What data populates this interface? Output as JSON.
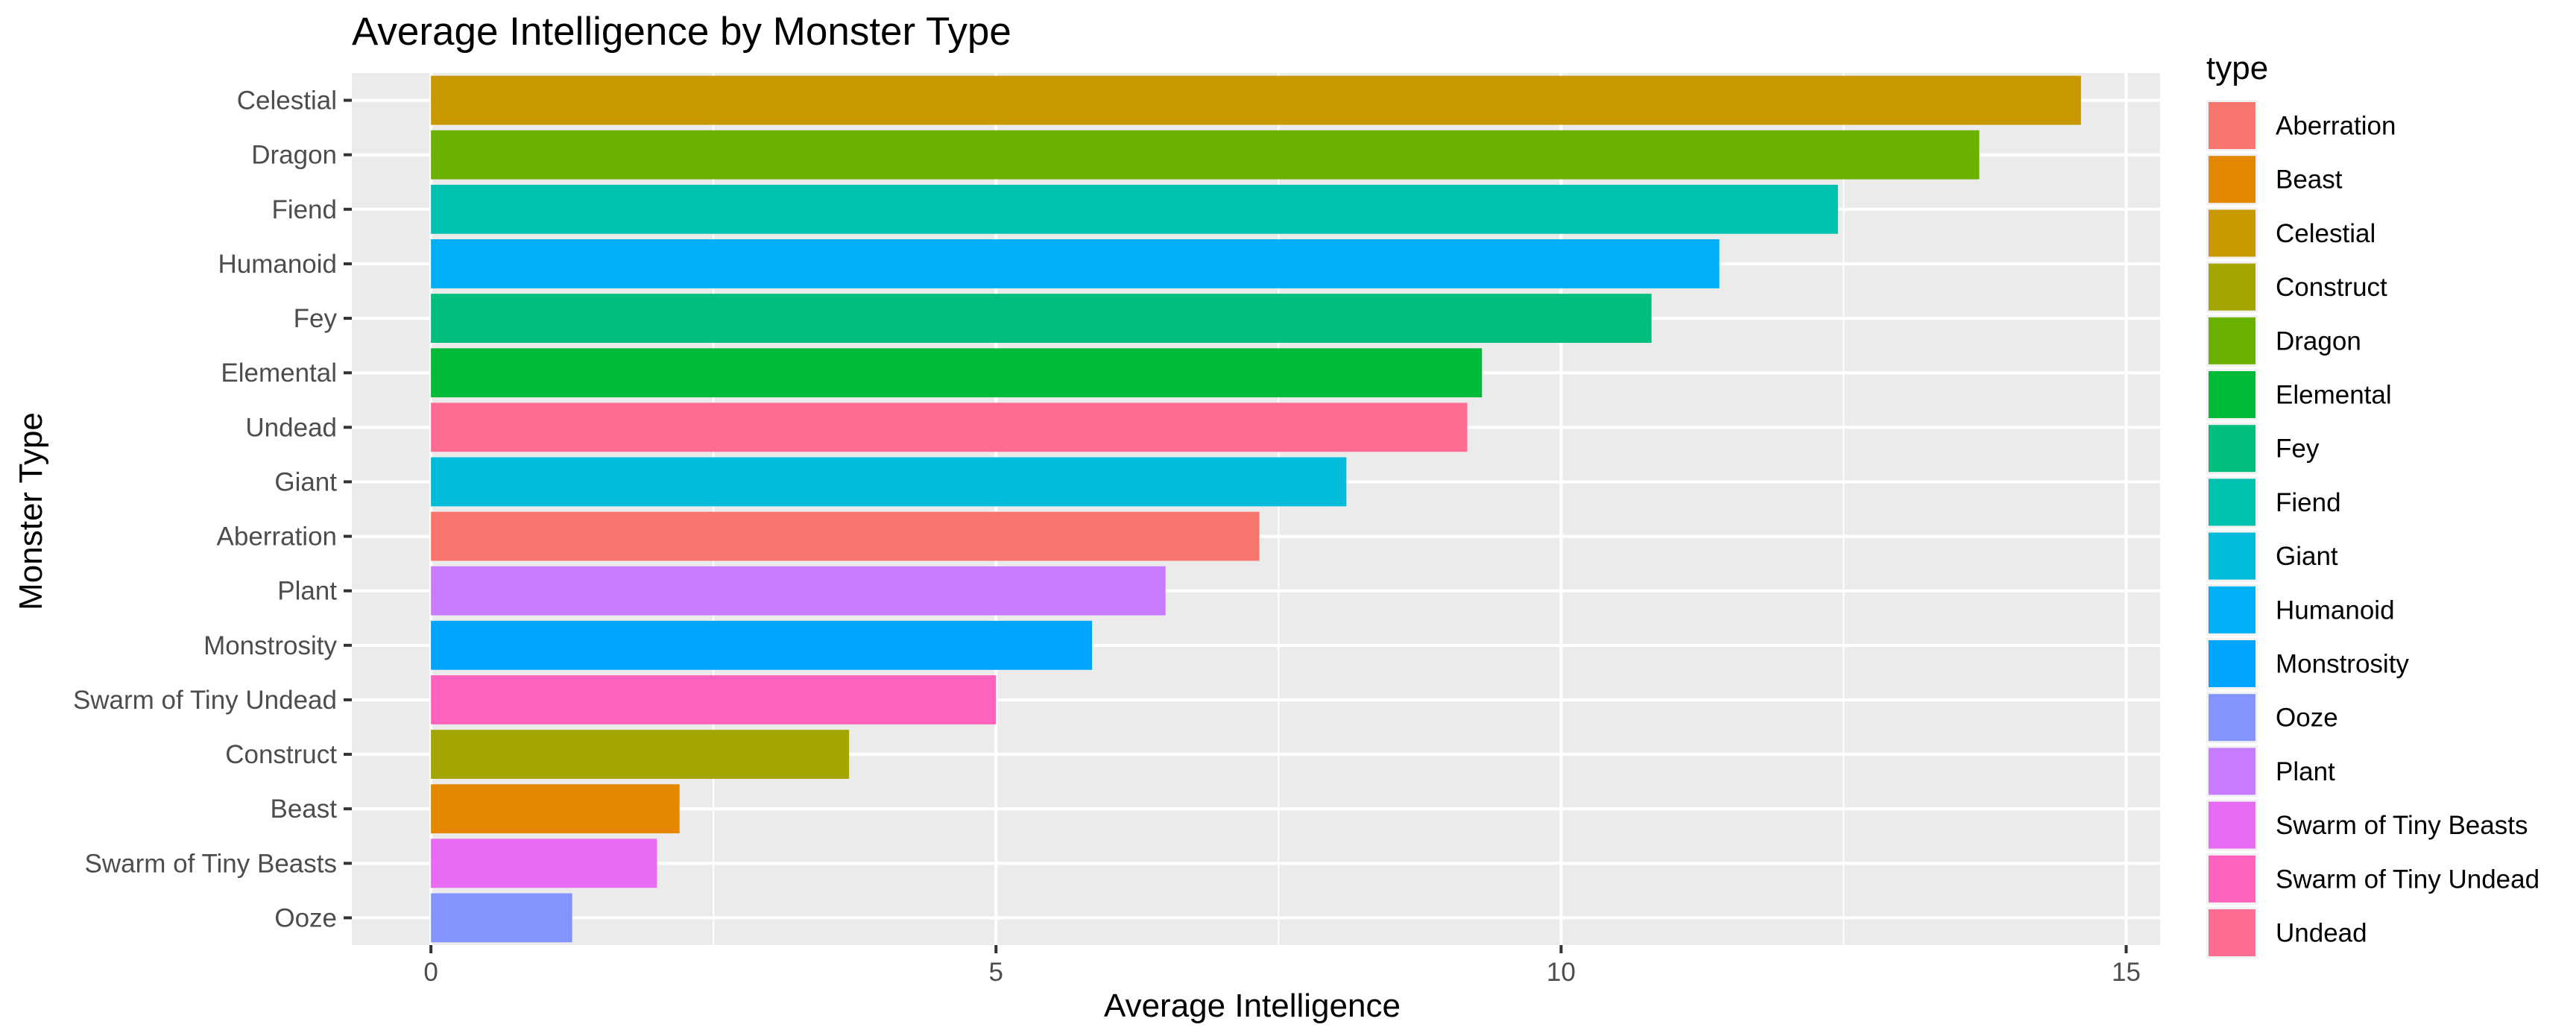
{
  "chart_data": {
    "type": "bar",
    "orientation": "horizontal",
    "title": "Average Intelligence by Monster Type",
    "xlabel": "Average Intelligence",
    "ylabel": "Monster Type",
    "xlim": [
      -0.7,
      15.3
    ],
    "xticks": [
      0,
      5,
      10,
      15
    ],
    "grid": true,
    "categories": [
      "Celestial",
      "Dragon",
      "Fiend",
      "Humanoid",
      "Fey",
      "Elemental",
      "Undead",
      "Giant",
      "Aberration",
      "Plant",
      "Monstrosity",
      "Swarm of Tiny Undead",
      "Construct",
      "Beast",
      "Swarm of Tiny Beasts",
      "Ooze"
    ],
    "values": [
      14.6,
      13.7,
      12.45,
      11.4,
      10.8,
      9.3,
      9.17,
      8.1,
      7.33,
      6.5,
      5.85,
      5.0,
      3.7,
      2.2,
      2.0,
      1.25
    ],
    "legend": {
      "title": "type",
      "position": "right",
      "entries": [
        {
          "label": "Aberration",
          "color": "#F8766D"
        },
        {
          "label": "Beast",
          "color": "#E58700"
        },
        {
          "label": "Celestial",
          "color": "#C99800"
        },
        {
          "label": "Construct",
          "color": "#A3A500"
        },
        {
          "label": "Dragon",
          "color": "#6BB100"
        },
        {
          "label": "Elemental",
          "color": "#00BA38"
        },
        {
          "label": "Fey",
          "color": "#00BF7D"
        },
        {
          "label": "Fiend",
          "color": "#00C0AF"
        },
        {
          "label": "Giant",
          "color": "#00BCD8"
        },
        {
          "label": "Humanoid",
          "color": "#00B0F6"
        },
        {
          "label": "Monstrosity",
          "color": "#00A5FF"
        },
        {
          "label": "Ooze",
          "color": "#8494FF"
        },
        {
          "label": "Plant",
          "color": "#C77CFF"
        },
        {
          "label": "Swarm of Tiny Beasts",
          "color": "#E76BF3"
        },
        {
          "label": "Swarm of Tiny Undead",
          "color": "#FF62BC"
        },
        {
          "label": "Undead",
          "color": "#FF6C91"
        }
      ]
    }
  }
}
